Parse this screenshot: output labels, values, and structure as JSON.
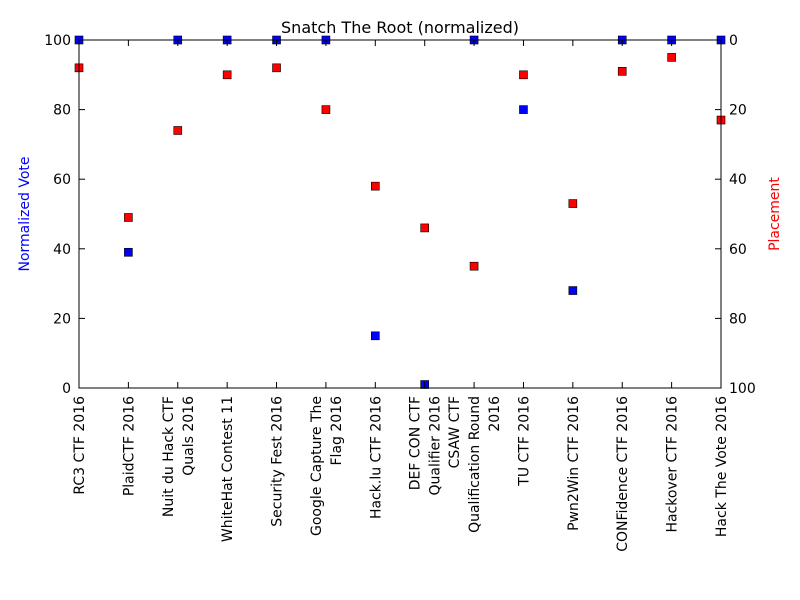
{
  "chart_data": {
    "type": "scatter",
    "title": "Snatch The Root (normalized)",
    "categories": [
      "RC3 CTF 2016",
      "PlaidCTF 2016",
      "Nuit du Hack CTF Quals 2016",
      "WhiteHat Contest 11",
      "Security Fest 2016",
      "Google Capture The Flag 2016",
      "Hack.lu CTF 2016",
      "DEF CON CTF Qualifier 2016",
      "CSAW CTF Qualification Round 2016",
      "TU CTF 2016",
      "Pwn2Win CTF 2016",
      "CONFidence CTF 2016",
      "Hackover CTF 2016",
      "Hack The Vote 2016"
    ],
    "category_lines": [
      [
        "RC3 CTF 2016"
      ],
      [
        "PlaidCTF 2016"
      ],
      [
        "Nuit du Hack CTF",
        "Quals 2016"
      ],
      [
        "WhiteHat Contest 11"
      ],
      [
        "Security Fest 2016"
      ],
      [
        "Google Capture The",
        "Flag 2016"
      ],
      [
        "Hack.lu CTF 2016"
      ],
      [
        "DEF CON CTF",
        "Qualifier 2016"
      ],
      [
        "CSAW CTF",
        "Qualification Round",
        "2016"
      ],
      [
        "TU CTF 2016"
      ],
      [
        "Pwn2Win CTF 2016"
      ],
      [
        "CONFidence CTF 2016"
      ],
      [
        "Hackover CTF 2016"
      ],
      [
        "Hack The Vote 2016"
      ]
    ],
    "series": [
      {
        "name": "Normalized Vote",
        "axis": "left",
        "color": "#0000ff",
        "values": [
          100,
          39,
          100,
          100,
          100,
          100,
          15,
          1,
          100,
          80,
          28,
          100,
          100,
          100
        ]
      },
      {
        "name": "Placement",
        "axis": "right",
        "color": "#ff0000",
        "values": [
          8,
          51,
          26,
          10,
          8,
          20,
          42,
          54,
          65,
          10,
          47,
          9,
          5,
          23
        ]
      }
    ],
    "ylabel": "Normalized Vote",
    "ylim": [
      0,
      100
    ],
    "yticks": [
      0,
      20,
      40,
      60,
      80,
      100
    ],
    "y2label": "Placement",
    "y2lim": [
      100,
      0
    ],
    "y2ticks": [
      0,
      20,
      40,
      60,
      80,
      100
    ],
    "y2_inverted": true,
    "grid": false,
    "marker": "square"
  }
}
